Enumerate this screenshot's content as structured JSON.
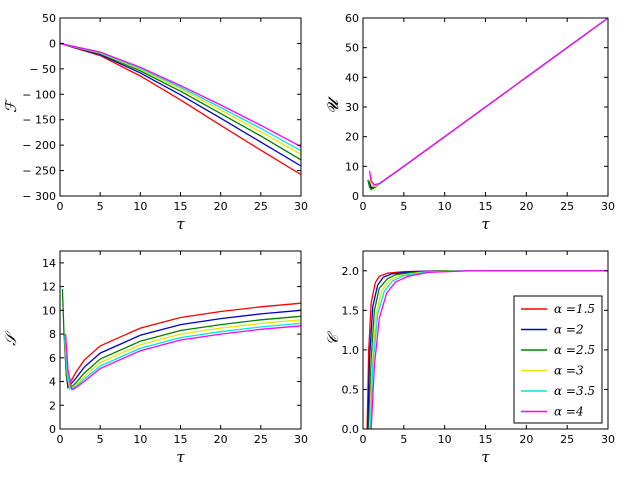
{
  "legend": {
    "location": "lower right of bottom-right panel",
    "entries": [
      "α =1.5",
      "α =2",
      "α =2.5",
      "α =3",
      "α =3.5",
      "α =4"
    ]
  },
  "colors": {
    "a1_5": "#ff0000",
    "a2": "#0000cc",
    "a2_5": "#008000",
    "a3": "#e6e600",
    "a3_5": "#00e6e6",
    "a4": "#ff00ff"
  },
  "chart_data": [
    {
      "type": "line",
      "ylabel": "ℱ",
      "xlabel": "τ",
      "xlim": [
        0,
        30
      ],
      "ylim": [
        -300,
        50
      ],
      "xticks": [
        "0",
        "5",
        "10",
        "15",
        "20",
        "25",
        "30"
      ],
      "yticks": [
        "− 300",
        "− 250",
        "− 200",
        "− 150",
        "− 100",
        "− 50",
        "0",
        "50"
      ],
      "x": [
        0,
        5,
        10,
        15,
        20,
        25,
        30
      ],
      "series": [
        {
          "name": "α =1.5",
          "values": [
            0,
            -24,
            -64,
            -111,
            -161,
            -210,
            -258
          ]
        },
        {
          "name": "α =2",
          "values": [
            0,
            -22,
            -58,
            -101,
            -147,
            -194,
            -241
          ]
        },
        {
          "name": "α =2.5",
          "values": [
            0,
            -20,
            -54,
            -94,
            -138,
            -182,
            -229
          ]
        },
        {
          "name": "α =3",
          "values": [
            0,
            -19,
            -51,
            -89,
            -131,
            -174,
            -218
          ]
        },
        {
          "name": "α =3.5",
          "values": [
            0,
            -18,
            -49,
            -86,
            -126,
            -167,
            -211
          ]
        },
        {
          "name": "α =4",
          "values": [
            0,
            -17,
            -47,
            -83,
            -121,
            -161,
            -203
          ]
        }
      ]
    },
    {
      "type": "line",
      "ylabel": "𝓤",
      "xlabel": "τ",
      "xlim": [
        0,
        30
      ],
      "ylim": [
        0,
        60
      ],
      "xticks": [
        "0",
        "5",
        "10",
        "15",
        "20",
        "25",
        "30"
      ],
      "yticks": [
        "0",
        "10",
        "20",
        "30",
        "40",
        "50",
        "60"
      ],
      "series": [
        {
          "name": "α =1.5",
          "x": [
            0.8,
            1.0,
            1.5,
            2,
            5,
            10,
            20,
            30
          ],
          "values": [
            3.5,
            2.5,
            3.0,
            4.0,
            10,
            20,
            40,
            60
          ]
        },
        {
          "name": "α =2",
          "x": [
            0.8,
            1.0,
            1.5,
            2,
            5,
            10,
            20,
            30
          ],
          "values": [
            5.0,
            2.8,
            3.0,
            4.0,
            10,
            20,
            40,
            60
          ]
        },
        {
          "name": "α =2.5",
          "x": [
            0.6,
            0.8,
            1.0,
            1.5,
            2,
            5,
            10,
            20,
            30
          ],
          "values": [
            5.5,
            3.0,
            2.2,
            3.0,
            4.0,
            10,
            20,
            40,
            60
          ]
        },
        {
          "name": "α =3",
          "x": [
            0.8,
            1.0,
            1.5,
            2,
            5,
            10,
            20,
            30
          ],
          "values": [
            6.0,
            4.0,
            3.2,
            4.0,
            10,
            20,
            40,
            60
          ]
        },
        {
          "name": "α =3.5",
          "x": [
            0.9,
            1.1,
            1.5,
            2,
            5,
            10,
            20,
            30
          ],
          "values": [
            7.0,
            4.5,
            3.5,
            4.0,
            10,
            20,
            40,
            60
          ]
        },
        {
          "name": "α =4",
          "x": [
            0.8,
            1.0,
            1.4,
            2,
            5,
            10,
            20,
            30
          ],
          "values": [
            8.5,
            5.0,
            3.8,
            4.2,
            10,
            20,
            40,
            60
          ]
        }
      ]
    },
    {
      "type": "line",
      "ylabel": "𝒮",
      "xlabel": "τ",
      "xlim": [
        0,
        30
      ],
      "ylim": [
        0,
        15
      ],
      "xticks": [
        "0",
        "5",
        "10",
        "15",
        "20",
        "25",
        "30"
      ],
      "yticks": [
        "0",
        "2",
        "4",
        "6",
        "8",
        "10",
        "12",
        "14"
      ],
      "series": [
        {
          "name": "α =1.5",
          "x": [
            0.6,
            0.8,
            1.0,
            2,
            3,
            5,
            10,
            15,
            20,
            25,
            30
          ],
          "values": [
            7.0,
            4.5,
            3.6,
            4.8,
            5.8,
            7.0,
            8.5,
            9.4,
            9.9,
            10.3,
            10.6
          ]
        },
        {
          "name": "α =2",
          "x": [
            0.6,
            0.8,
            1.0,
            2,
            3,
            5,
            10,
            15,
            20,
            25,
            30
          ],
          "values": [
            7.5,
            4.6,
            3.5,
            4.3,
            5.2,
            6.4,
            7.9,
            8.8,
            9.3,
            9.7,
            10.0
          ]
        },
        {
          "name": "α =2.5",
          "x": [
            0.3,
            0.5,
            0.8,
            1.2,
            2,
            3,
            5,
            10,
            15,
            20,
            25,
            30
          ],
          "values": [
            11.8,
            8.0,
            4.5,
            3.4,
            3.9,
            4.7,
            5.9,
            7.4,
            8.3,
            8.8,
            9.2,
            9.5
          ]
        },
        {
          "name": "α =3",
          "x": [
            0.6,
            0.9,
            1.2,
            2,
            3,
            5,
            10,
            15,
            20,
            25,
            30
          ],
          "values": [
            7.5,
            4.6,
            3.4,
            3.7,
            4.4,
            5.6,
            7.1,
            8.0,
            8.5,
            8.9,
            9.2
          ]
        },
        {
          "name": "α =3.5",
          "x": [
            0.6,
            0.9,
            1.3,
            2,
            3,
            5,
            10,
            15,
            20,
            25,
            30
          ],
          "values": [
            7.8,
            4.8,
            3.4,
            3.6,
            4.2,
            5.3,
            6.8,
            7.7,
            8.2,
            8.6,
            8.9
          ]
        },
        {
          "name": "α =4",
          "x": [
            0.7,
            1.0,
            1.5,
            2,
            3,
            5,
            10,
            15,
            20,
            25,
            30
          ],
          "values": [
            8.0,
            5.0,
            3.3,
            3.5,
            4.0,
            5.1,
            6.6,
            7.5,
            8.0,
            8.4,
            8.7
          ]
        }
      ]
    },
    {
      "type": "line",
      "ylabel": "𝒞",
      "xlabel": "τ",
      "xlim": [
        0,
        30
      ],
      "ylim": [
        0,
        2.25
      ],
      "xticks": [
        "0",
        "5",
        "10",
        "15",
        "20",
        "25",
        "30"
      ],
      "yticks": [
        "0.0",
        "0.5",
        "1.0",
        "1.5",
        "2.0"
      ],
      "series": [
        {
          "name": "α =1.5",
          "x": [
            0.5,
            0.7,
            1.0,
            1.5,
            2,
            3,
            5,
            10,
            30
          ],
          "values": [
            0,
            1.0,
            1.6,
            1.85,
            1.93,
            1.97,
            1.99,
            2.0,
            2.0
          ]
        },
        {
          "name": "α =2",
          "x": [
            0.6,
            0.8,
            1.2,
            1.8,
            2.5,
            3.5,
            6,
            10,
            30
          ],
          "values": [
            0,
            0.9,
            1.55,
            1.82,
            1.92,
            1.96,
            1.99,
            2.0,
            2.0
          ]
        },
        {
          "name": "α =2.5",
          "x": [
            0.7,
            1.0,
            1.4,
            2.0,
            3,
            4,
            6,
            10,
            30
          ],
          "values": [
            0,
            0.9,
            1.5,
            1.78,
            1.9,
            1.95,
            1.98,
            2.0,
            2.0
          ]
        },
        {
          "name": "α =3",
          "x": [
            0.8,
            1.1,
            1.6,
            2.3,
            3.3,
            4.5,
            7,
            11,
            30
          ],
          "values": [
            0,
            0.8,
            1.45,
            1.75,
            1.88,
            1.94,
            1.98,
            2.0,
            2.0
          ]
        },
        {
          "name": "α =3.5",
          "x": [
            0.9,
            1.2,
            1.8,
            2.6,
            3.6,
            5,
            7.5,
            12,
            30
          ],
          "values": [
            0,
            0.8,
            1.45,
            1.74,
            1.87,
            1.94,
            1.98,
            2.0,
            2.0
          ]
        },
        {
          "name": "α =4",
          "x": [
            1.0,
            1.4,
            2.0,
            2.9,
            4,
            5.5,
            8,
            13,
            30
          ],
          "values": [
            0,
            0.8,
            1.4,
            1.72,
            1.86,
            1.93,
            1.98,
            2.0,
            2.0
          ]
        }
      ]
    }
  ]
}
